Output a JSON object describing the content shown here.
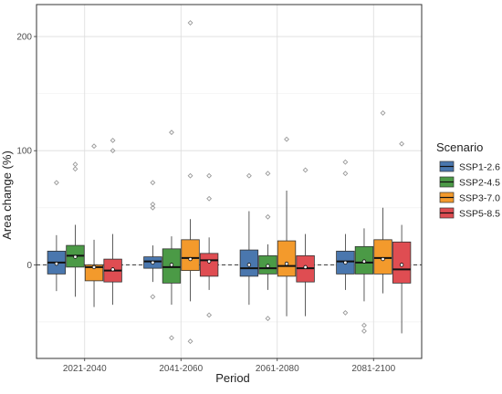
{
  "chart_data": {
    "type": "boxplot",
    "xlabel": "Period",
    "ylabel": "Area change (%)",
    "ylim": [
      -82,
      228
    ],
    "yticks": [
      0,
      100,
      200
    ],
    "reference_line": 0,
    "grid": true,
    "legend": {
      "title": "Scenario",
      "position": "right"
    },
    "categories": [
      "2021-2040",
      "2041-2060",
      "2061-2080",
      "2081-2100"
    ],
    "series": [
      {
        "name": "SSP1-2.6",
        "color": "#4a77ae",
        "boxes": [
          {
            "lower_whisker": -23,
            "q1": -8,
            "median": 2,
            "q3": 12,
            "upper_whisker": 26,
            "mean": 1,
            "outliers": [
              72
            ]
          },
          {
            "lower_whisker": -15,
            "q1": -3,
            "median": 3,
            "q3": 7,
            "upper_whisker": 17,
            "mean": 2,
            "outliers": [
              72,
              53,
              50,
              -28
            ]
          },
          {
            "lower_whisker": -35,
            "q1": -10,
            "median": -3,
            "q3": 13,
            "upper_whisker": 47,
            "mean": 0,
            "outliers": [
              78
            ]
          },
          {
            "lower_whisker": -22,
            "q1": -8,
            "median": 3,
            "q3": 12,
            "upper_whisker": 27,
            "mean": 2,
            "outliers": [
              90,
              80,
              -42
            ]
          }
        ]
      },
      {
        "name": "SSP2-4.5",
        "color": "#4b9a46",
        "boxes": [
          {
            "lower_whisker": -28,
            "q1": -2,
            "median": 8,
            "q3": 17,
            "upper_whisker": 35,
            "mean": 7,
            "outliers": [
              88,
              84
            ]
          },
          {
            "lower_whisker": -35,
            "q1": -16,
            "median": -2,
            "q3": 14,
            "upper_whisker": 25,
            "mean": 0,
            "outliers": [
              116,
              -64
            ]
          },
          {
            "lower_whisker": -22,
            "q1": -8,
            "median": -3,
            "q3": 8,
            "upper_whisker": 18,
            "mean": -1,
            "outliers": [
              80,
              42,
              -47
            ]
          },
          {
            "lower_whisker": -32,
            "q1": -8,
            "median": 2,
            "q3": 16,
            "upper_whisker": 32,
            "mean": 3,
            "outliers": [
              -53,
              -58
            ]
          }
        ]
      },
      {
        "name": "SSP3-7.0",
        "color": "#f39a2c",
        "boxes": [
          {
            "lower_whisker": -37,
            "q1": -14,
            "median": -2,
            "q3": 0,
            "upper_whisker": 22,
            "mean": -2,
            "outliers": [
              104
            ]
          },
          {
            "lower_whisker": -32,
            "q1": -5,
            "median": 6,
            "q3": 22,
            "upper_whisker": 40,
            "mean": 5,
            "outliers": [
              212,
              78,
              -67
            ]
          },
          {
            "lower_whisker": -45,
            "q1": -10,
            "median": -1,
            "q3": 21,
            "upper_whisker": 65,
            "mean": 1,
            "outliers": [
              110
            ]
          },
          {
            "lower_whisker": -25,
            "q1": -8,
            "median": 6,
            "q3": 22,
            "upper_whisker": 50,
            "mean": 5,
            "outliers": [
              133
            ]
          }
        ]
      },
      {
        "name": "SSP5-8.5",
        "color": "#df4d52",
        "boxes": [
          {
            "lower_whisker": -35,
            "q1": -15,
            "median": -5,
            "q3": 5,
            "upper_whisker": 27,
            "mean": -4,
            "outliers": [
              109,
              100
            ]
          },
          {
            "lower_whisker": -22,
            "q1": -10,
            "median": 4,
            "q3": 10,
            "upper_whisker": 24,
            "mean": 3,
            "outliers": [
              78,
              58,
              -44
            ]
          },
          {
            "lower_whisker": -45,
            "q1": -15,
            "median": -3,
            "q3": 8,
            "upper_whisker": 27,
            "mean": -2,
            "outliers": [
              83
            ]
          },
          {
            "lower_whisker": -60,
            "q1": -16,
            "median": -4,
            "q3": 20,
            "upper_whisker": 35,
            "mean": 0,
            "outliers": [
              106
            ]
          }
        ]
      }
    ]
  }
}
